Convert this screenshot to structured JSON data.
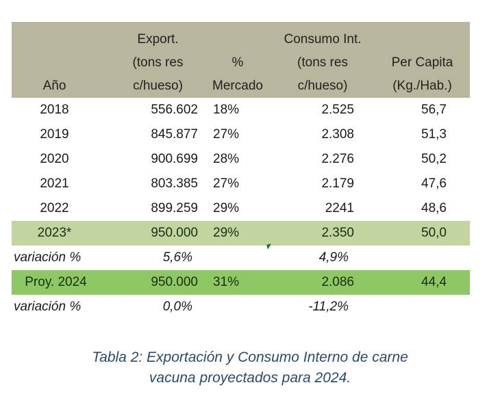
{
  "table": {
    "headers": {
      "year": [
        "Año"
      ],
      "export": [
        "Export.",
        "(tons res",
        "c/hueso)"
      ],
      "market": [
        "%",
        "Mercado"
      ],
      "consumption": [
        "Consumo Int.",
        "(tons res",
        "c/hueso)"
      ],
      "per_capita": [
        "Per Capita",
        "(Kg./Hab.)"
      ]
    },
    "rows": [
      {
        "year": "2018",
        "export": "556.602",
        "market": "18%",
        "consumption": "2.525",
        "per_capita": "56,7"
      },
      {
        "year": "2019",
        "export": "845.877",
        "market": "27%",
        "consumption": "2.308",
        "per_capita": "51,3"
      },
      {
        "year": "2020",
        "export": "900.699",
        "market": "28%",
        "consumption": "2.276",
        "per_capita": "50,2"
      },
      {
        "year": "2021",
        "export": "803.385",
        "market": "27%",
        "consumption": "2.179",
        "per_capita": "47,6"
      },
      {
        "year": "2022",
        "export": "899.259",
        "market": "29%",
        "consumption": "2241",
        "per_capita": "48,6"
      },
      {
        "year": "2023*",
        "export": "950.000",
        "market": "29%",
        "consumption": "2.350",
        "per_capita": "50,0"
      },
      {
        "year": "variación %",
        "export": "5,6%",
        "market": "",
        "consumption": "4,9%",
        "per_capita": ""
      },
      {
        "year": "Proy. 2024",
        "export": "950.000",
        "market": "31%",
        "consumption": "2.086",
        "per_capita": "44,4"
      },
      {
        "year": "variación %",
        "export": "0,0%",
        "market": "",
        "consumption": "-11,2%",
        "per_capita": ""
      }
    ]
  },
  "caption": {
    "line1": "Tabla 2: Exportación y Consumo Interno de carne",
    "line2": "vacuna proyectados para 2024."
  },
  "colors": {
    "header_bg": "#b8b69c",
    "row_2023_bg": "#c2d4a0",
    "row_2024_bg": "#8fc765",
    "caption_text": "#2a4a6a"
  }
}
